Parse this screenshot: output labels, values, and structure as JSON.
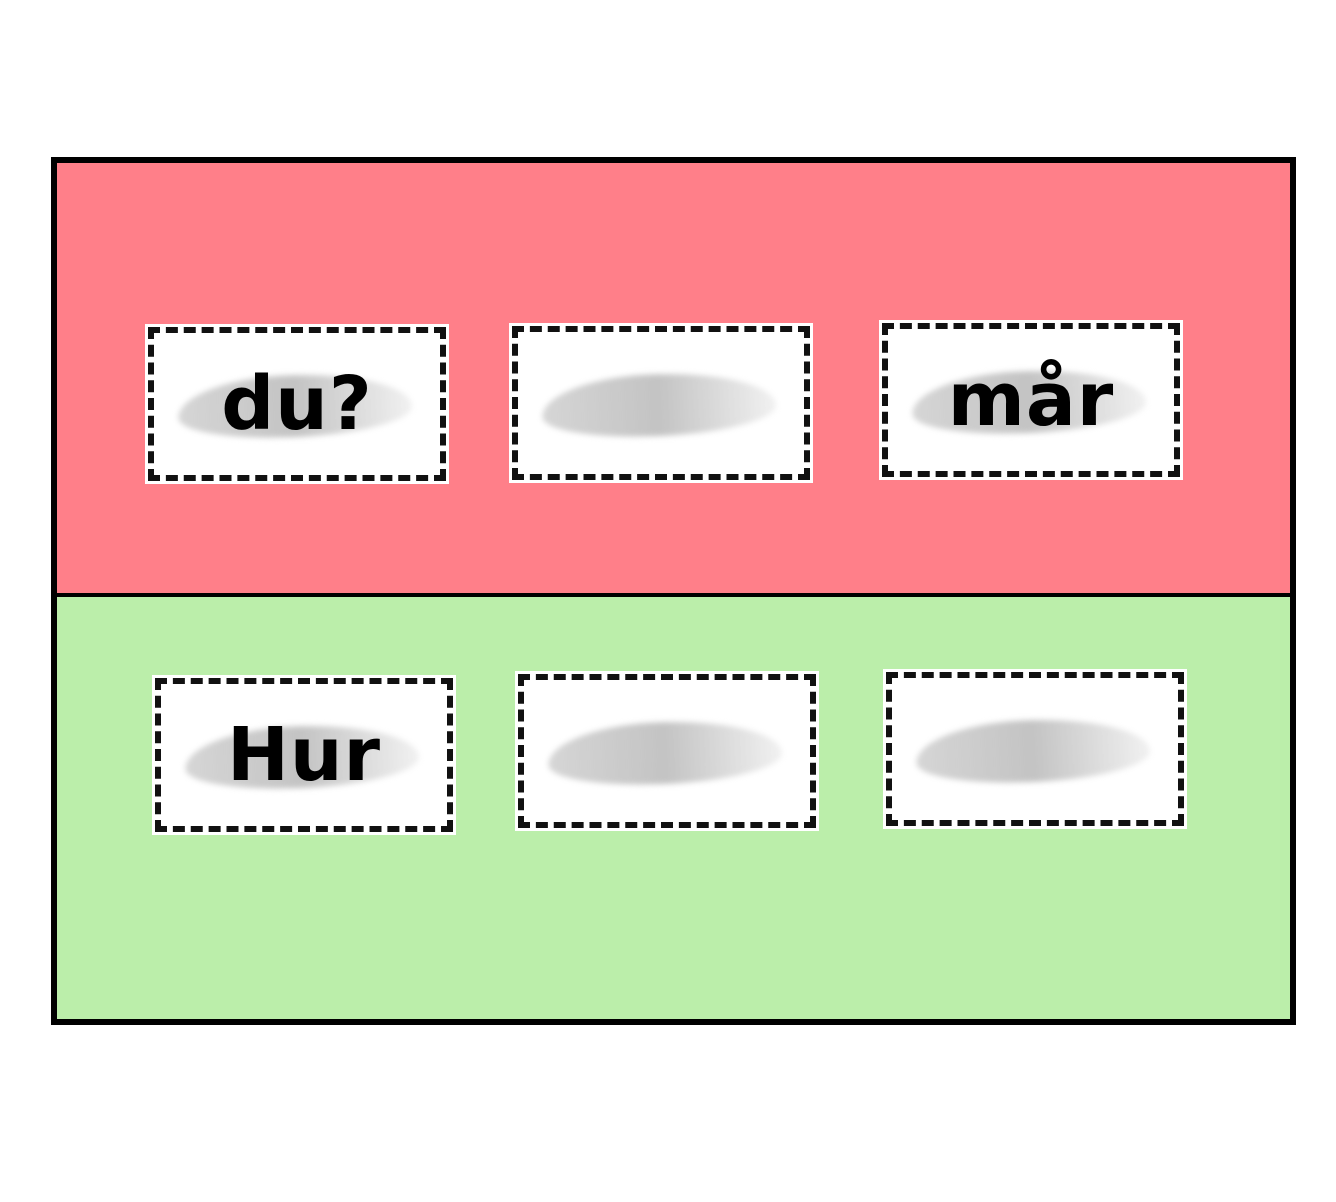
{
  "colors": {
    "top_zone": "#ff7f89",
    "bottom_zone": "#bbeeaa",
    "border": "#000000",
    "card": "#ffffff",
    "smudge": "#bdbdbd"
  },
  "zones": {
    "top": {
      "cards": [
        {
          "text": "du?"
        },
        {
          "text": ""
        },
        {
          "text": "mår"
        }
      ]
    },
    "bottom": {
      "cards": [
        {
          "text": "Hur"
        },
        {
          "text": ""
        },
        {
          "text": ""
        }
      ]
    }
  }
}
